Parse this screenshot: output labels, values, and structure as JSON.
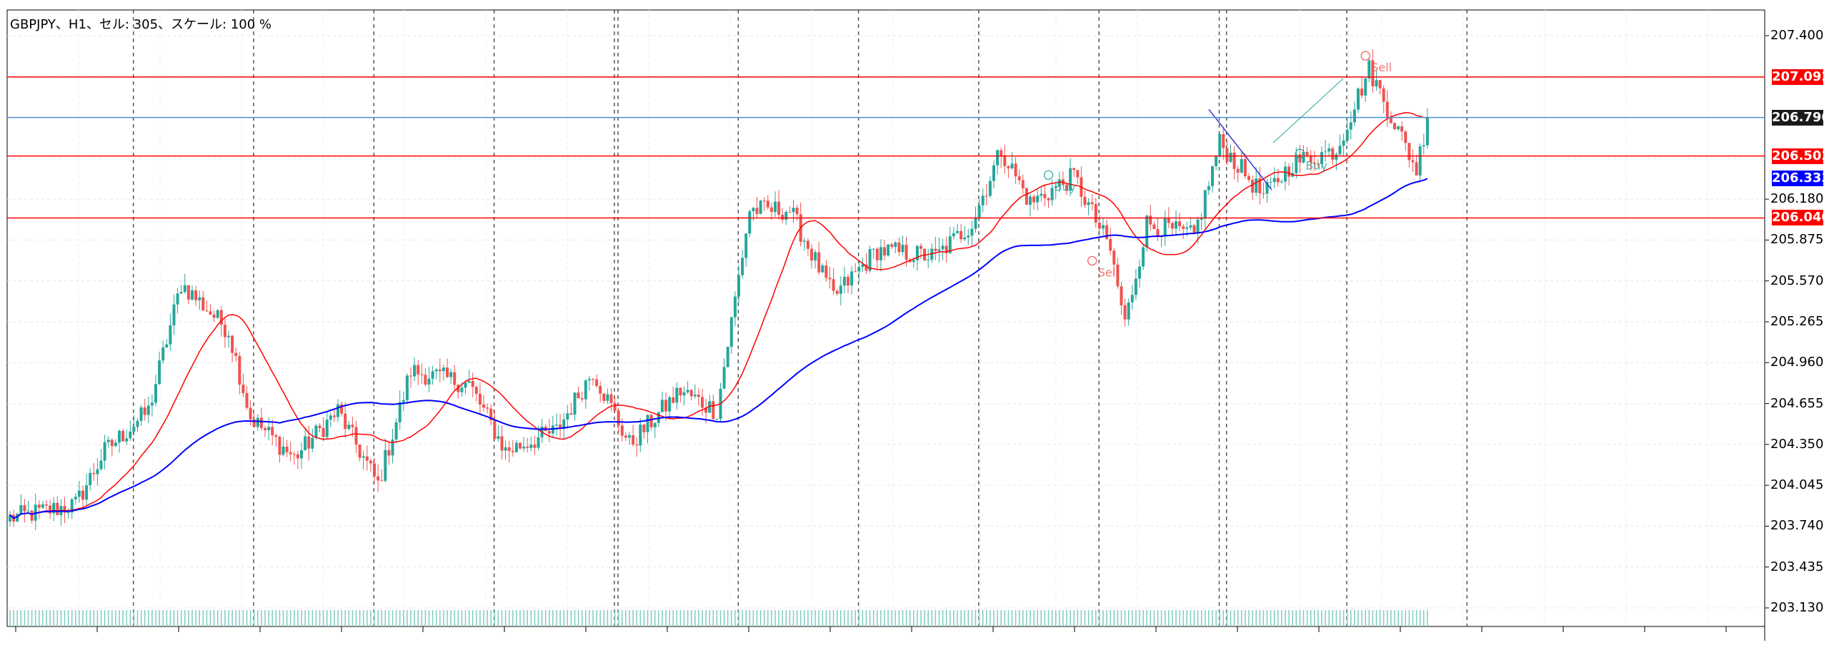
{
  "chart_info": {
    "label": "GBPJPY、H1、セル: 305、スケール: 100 %"
  },
  "colors": {
    "background": "#ffffff",
    "bull_candle": "#26a69a",
    "bear_candle": "#ef5350",
    "ma_fast": "#ff0000",
    "ma_slow": "#0000ff",
    "horizontal_level": "#ff0000",
    "current_price_line": "#4f8fd6",
    "volume": "#80cbc4"
  },
  "price_axis": {
    "ticks": [
      "207.400",
      "206.180",
      "205.875",
      "205.570",
      "205.265",
      "204.960",
      "204.655",
      "204.350",
      "204.045",
      "203.740",
      "203.435",
      "203.130"
    ]
  },
  "price_tags": [
    {
      "value": "207.092",
      "kind": "level"
    },
    {
      "value": "206.790",
      "kind": "current"
    },
    {
      "value": "206.502",
      "kind": "level"
    },
    {
      "value": "206.333",
      "kind": "ma"
    },
    {
      "value": "206.040",
      "kind": "level"
    }
  ],
  "annotations": [
    {
      "text": "Buy",
      "price": 206.36,
      "bar": 285
    },
    {
      "text": "Buy",
      "price": 206.52,
      "bar": 354
    },
    {
      "text": "Sell",
      "price": 205.72,
      "bar": 297
    },
    {
      "text": "Sell",
      "price": 207.25,
      "bar": 372
    }
  ],
  "chart_data": {
    "type": "candlestick",
    "symbol": "GBPJPY",
    "timeframe": "H1",
    "ylim": [
      203.05,
      207.55
    ],
    "horizontal_levels": [
      207.092,
      206.502,
      206.04
    ],
    "current_price": 206.79,
    "ma_slow_last": 206.333,
    "bar_count": 390,
    "vertical_dividers_at_bar": [
      17,
      50,
      83,
      116,
      149,
      150,
      183,
      216,
      249,
      282,
      315,
      317,
      350,
      383
    ],
    "key_points": [
      {
        "bar": 0,
        "price": 203.8
      },
      {
        "bar": 18,
        "price": 203.9
      },
      {
        "bar": 26,
        "price": 204.3
      },
      {
        "bar": 38,
        "price": 204.6
      },
      {
        "bar": 47,
        "price": 205.55
      },
      {
        "bar": 60,
        "price": 205.2
      },
      {
        "bar": 66,
        "price": 204.55
      },
      {
        "bar": 78,
        "price": 204.25
      },
      {
        "bar": 90,
        "price": 204.6
      },
      {
        "bar": 101,
        "price": 204.05
      },
      {
        "bar": 110,
        "price": 204.9
      },
      {
        "bar": 126,
        "price": 204.8
      },
      {
        "bar": 136,
        "price": 204.3
      },
      {
        "bar": 150,
        "price": 204.45
      },
      {
        "bar": 160,
        "price": 204.9
      },
      {
        "bar": 170,
        "price": 204.35
      },
      {
        "bar": 184,
        "price": 204.75
      },
      {
        "bar": 194,
        "price": 204.6
      },
      {
        "bar": 203,
        "price": 206.1
      },
      {
        "bar": 214,
        "price": 206.1
      },
      {
        "bar": 226,
        "price": 205.45
      },
      {
        "bar": 238,
        "price": 205.8
      },
      {
        "bar": 254,
        "price": 205.75
      },
      {
        "bar": 264,
        "price": 206.0
      },
      {
        "bar": 272,
        "price": 206.55
      },
      {
        "bar": 280,
        "price": 206.15
      },
      {
        "bar": 292,
        "price": 206.35
      },
      {
        "bar": 302,
        "price": 205.8
      },
      {
        "bar": 306,
        "price": 205.25
      },
      {
        "bar": 312,
        "price": 206.0
      },
      {
        "bar": 325,
        "price": 205.9
      },
      {
        "bar": 332,
        "price": 206.6
      },
      {
        "bar": 344,
        "price": 206.2
      },
      {
        "bar": 352,
        "price": 206.45
      },
      {
        "bar": 364,
        "price": 206.55
      },
      {
        "bar": 373,
        "price": 207.15
      },
      {
        "bar": 380,
        "price": 206.75
      },
      {
        "bar": 386,
        "price": 206.4
      },
      {
        "bar": 389,
        "price": 206.79
      }
    ]
  }
}
